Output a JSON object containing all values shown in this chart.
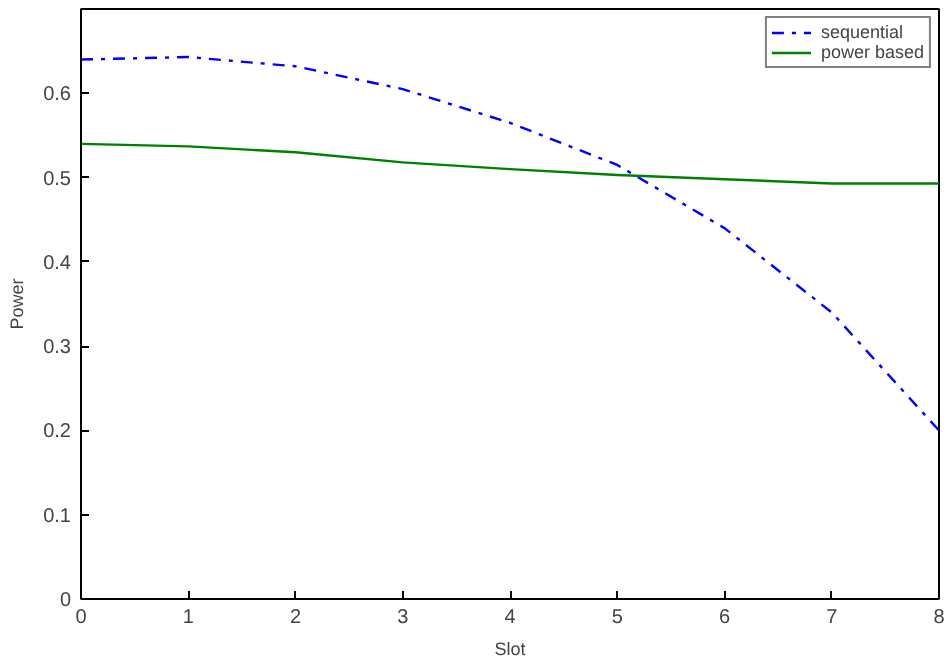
{
  "chart_data": {
    "type": "line",
    "xlabel": "Slot",
    "ylabel": "Power",
    "x": [
      0,
      1,
      2,
      3,
      4,
      5,
      6,
      7,
      8
    ],
    "series": [
      {
        "name": "sequential",
        "color": "#0000ff",
        "line_style": "dashdot",
        "values": [
          0.64,
          0.643,
          0.632,
          0.605,
          0.565,
          0.515,
          0.44,
          0.34,
          0.2
        ]
      },
      {
        "name": "power based",
        "color": "#008000",
        "line_style": "solid",
        "values": [
          0.54,
          0.537,
          0.53,
          0.518,
          0.51,
          0.503,
          0.498,
          0.493,
          0.493
        ]
      }
    ],
    "xlim": [
      0,
      8
    ],
    "ylim": [
      0,
      0.7
    ],
    "xticks": [
      0,
      1,
      2,
      3,
      4,
      5,
      6,
      7,
      8
    ],
    "yticks": [
      0,
      0.1,
      0.2,
      0.3,
      0.4,
      0.5,
      0.6
    ],
    "grid": false,
    "legend": "top right",
    "marker": "none"
  }
}
